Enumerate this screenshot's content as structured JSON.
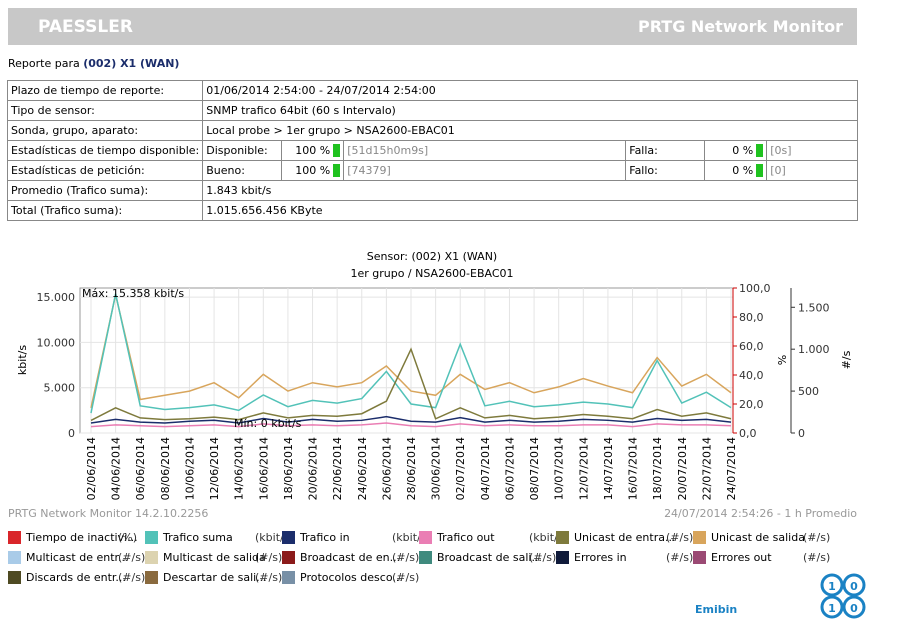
{
  "header": {
    "logo": "PAESSLER",
    "product": "PRTG Network Monitor"
  },
  "report": {
    "prefix": "Reporte para",
    "sensor": "(002) X1 (WAN)"
  },
  "table": {
    "rows": [
      [
        "Plazo de tiempo de reporte:",
        "01/06/2014 2:54:00 - 24/07/2014 2:54:00"
      ],
      [
        "Tipo de sensor:",
        "SNMP trafico 64bit (60 s Intervalo)"
      ],
      [
        "Sonda, grupo, aparato:",
        "Local probe > 1er grupo > NSA2600-EBAC01"
      ],
      [
        "Estadísticas de tiempo disponible:",
        "Disponible:",
        "100 %",
        "[51d15h0m9s]",
        "Falla:",
        "0 %",
        "[0s]"
      ],
      [
        "Estadísticas de petición:",
        "Bueno:",
        "100 %",
        "[74379]",
        "Fallo:",
        "0 %",
        "[0]"
      ],
      [
        "Promedio (Trafico suma):",
        "1.843 kbit/s"
      ],
      [
        "Total (Trafico suma):",
        "1.015.656.456 KByte"
      ]
    ]
  },
  "chart_data": {
    "type": "line",
    "title": "Sensor: (002) X1 (WAN)",
    "subtitle": "1er grupo / NSA2600-EBAC01",
    "ylabel": "kbit/s",
    "y2label": "%",
    "y3label": "#/s",
    "max_label": "Máx: 15.358 kbit/s",
    "min_label": "Mín: 0 kbit/s",
    "footer_left": "PRTG Network Monitor 14.2.10.2256",
    "footer_right": "24/07/2014 2:54:26 - 1 h Promedio",
    "x": [
      "02/06/2014",
      "04/06/2014",
      "06/06/2014",
      "08/06/2014",
      "10/06/2014",
      "12/06/2014",
      "14/06/2014",
      "16/06/2014",
      "18/06/2014",
      "20/06/2014",
      "22/06/2014",
      "24/06/2014",
      "26/06/2014",
      "28/06/2014",
      "30/06/2014",
      "02/07/2014",
      "04/07/2014",
      "06/07/2014",
      "08/07/2014",
      "10/07/2014",
      "12/07/2014",
      "14/07/2014",
      "16/07/2014",
      "18/07/2014",
      "20/07/2014",
      "22/07/2014",
      "24/07/2014"
    ],
    "ylim": [
      0,
      16000
    ],
    "yticks": [
      0,
      {
        "value": 5000,
        "label": "5.000"
      },
      {
        "value": 10000,
        "label": "10.000"
      },
      {
        "value": 15000,
        "label": "15.000"
      }
    ],
    "y2lim": [
      0,
      100
    ],
    "y2ticks": [
      {
        "value": 0,
        "label": "0,0"
      },
      {
        "value": 20,
        "label": "20,0"
      },
      {
        "value": 40,
        "label": "40,0"
      },
      {
        "value": 60,
        "label": "60,0"
      },
      {
        "value": 80,
        "label": "80,0"
      },
      {
        "value": 100,
        "label": "100,0"
      }
    ],
    "y3lim": [
      0,
      1730
    ],
    "y3ticks": [
      0,
      500,
      {
        "value": 1000,
        "label": "1.000"
      },
      {
        "value": 1500,
        "label": "1.500"
      }
    ],
    "grid": true,
    "series": [
      {
        "name": "Tiempo de inactivi...",
        "unit": "(%)",
        "color": "#d9252a"
      },
      {
        "name": "Trafico suma",
        "unit": "(kbit/s)",
        "color": "#52c2b8",
        "axis": "y",
        "values": [
          2200,
          15358,
          3000,
          2600,
          2800,
          3100,
          2500,
          4200,
          2900,
          3600,
          3300,
          3800,
          6800,
          3200,
          2800,
          9800,
          3000,
          3500,
          2900,
          3100,
          3400,
          3200,
          2800,
          8000,
          3300,
          4500,
          2800
        ]
      },
      {
        "name": "Trafico in",
        "unit": "(kbit/s)",
        "color": "#1b2d6b",
        "axis": "y",
        "values": [
          1100,
          1500,
          1200,
          1100,
          1300,
          1400,
          1100,
          1600,
          1200,
          1500,
          1300,
          1400,
          1800,
          1300,
          1200,
          1700,
          1200,
          1400,
          1200,
          1300,
          1500,
          1400,
          1200,
          1600,
          1400,
          1500,
          1200
        ]
      },
      {
        "name": "Trafico out",
        "unit": "(kbit/s)",
        "color": "#ea7eb4",
        "axis": "y",
        "values": [
          700,
          900,
          800,
          700,
          800,
          900,
          700,
          1000,
          800,
          900,
          800,
          900,
          1100,
          800,
          700,
          1000,
          800,
          900,
          800,
          800,
          900,
          900,
          700,
          1000,
          900,
          900,
          800
        ]
      },
      {
        "name": "Unicast de entra...",
        "unit": "(#/s)",
        "color": "#7e7a3c",
        "axis": "y3",
        "values": [
          150,
          300,
          180,
          160,
          170,
          190,
          160,
          240,
          180,
          210,
          200,
          230,
          380,
          1000,
          170,
          300,
          180,
          210,
          170,
          190,
          220,
          200,
          170,
          280,
          200,
          240,
          170
        ]
      },
      {
        "name": "Unicast de salida",
        "unit": "(#/s)",
        "color": "#d8a55c",
        "axis": "y3",
        "values": [
          300,
          1650,
          400,
          450,
          500,
          600,
          420,
          700,
          500,
          600,
          550,
          600,
          800,
          500,
          450,
          700,
          520,
          600,
          480,
          550,
          650,
          560,
          480,
          900,
          560,
          700,
          480
        ]
      },
      {
        "name": "Multicast de entr...",
        "unit": "(#/s)",
        "color": "#a9cbe8"
      },
      {
        "name": "Multicast de salida",
        "unit": "(#/s)",
        "color": "#dcd3b0"
      },
      {
        "name": "Broadcast de en...",
        "unit": "(#/s)",
        "color": "#8b1a1a"
      },
      {
        "name": "Broadcast de sali...",
        "unit": "(#/s)",
        "color": "#3f8a7e"
      },
      {
        "name": "Errores in",
        "unit": "(#/s)",
        "color": "#0f1a3a"
      },
      {
        "name": "Errores out",
        "unit": "(#/s)",
        "color": "#9b4a74"
      },
      {
        "name": "Discards de entr...",
        "unit": "(#/s)",
        "color": "#4e4a22"
      },
      {
        "name": "Descartar de sali...",
        "unit": "(#/s)",
        "color": "#8a6a3e"
      },
      {
        "name": "Protocolos desco...",
        "unit": "(#/s)",
        "color": "#7890a6"
      }
    ]
  },
  "logo": {
    "text": "Emibin",
    "digits": [
      "1",
      "0",
      "1",
      "0"
    ]
  }
}
